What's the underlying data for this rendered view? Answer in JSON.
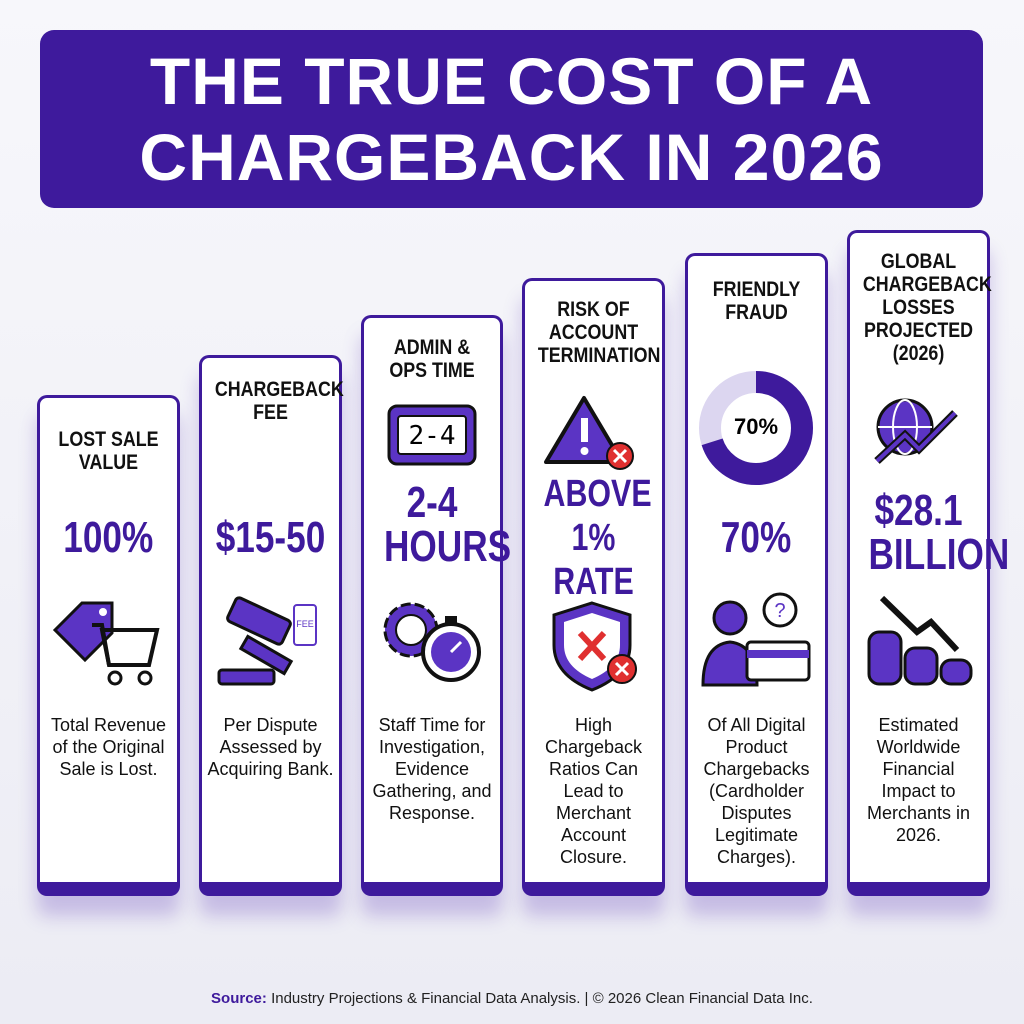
{
  "header": {
    "title": "THE TRUE COST OF A CHARGEBACK IN 2026"
  },
  "cards": [
    {
      "heading": "LOST SALE VALUE",
      "stat": "100%",
      "description": "Total Revenue of the Original Sale is Lost."
    },
    {
      "heading": "CHARGEBACK FEE",
      "stat": "$15-50",
      "description": "Per Dispute Assessed by Acquiring Bank.",
      "icon_tag": "FEE"
    },
    {
      "heading": "ADMIN & OPS TIME",
      "stat": "2-4 HOURS",
      "description": "Staff Time for Investigation, Evidence Gathering, and Response.",
      "clock_display": "2-4"
    },
    {
      "heading": "RISK OF ACCOUNT TERMINATION",
      "stat": "ABOVE 1% RATE",
      "description": "High Chargeback Ratios Can Lead to Merchant Account Closure."
    },
    {
      "heading": "FRIENDLY FRAUD",
      "stat": "70%",
      "description": "Of All Digital Product Chargebacks (Cardholder Disputes Legitimate Charges).",
      "donut": {
        "value": 70,
        "label": "70%"
      }
    },
    {
      "heading": "GLOBAL CHARGEBACK LOSSES PROJECTED (2026)",
      "stat": "$28.1 BILLION",
      "description": "Estimated Worldwide Financial Impact to Merchants in 2026."
    }
  ],
  "footer": {
    "source_label": "Source:",
    "source_text": "Industry Projections & Financial Data Analysis. | © 2026 Clean Financial Data Inc."
  }
}
